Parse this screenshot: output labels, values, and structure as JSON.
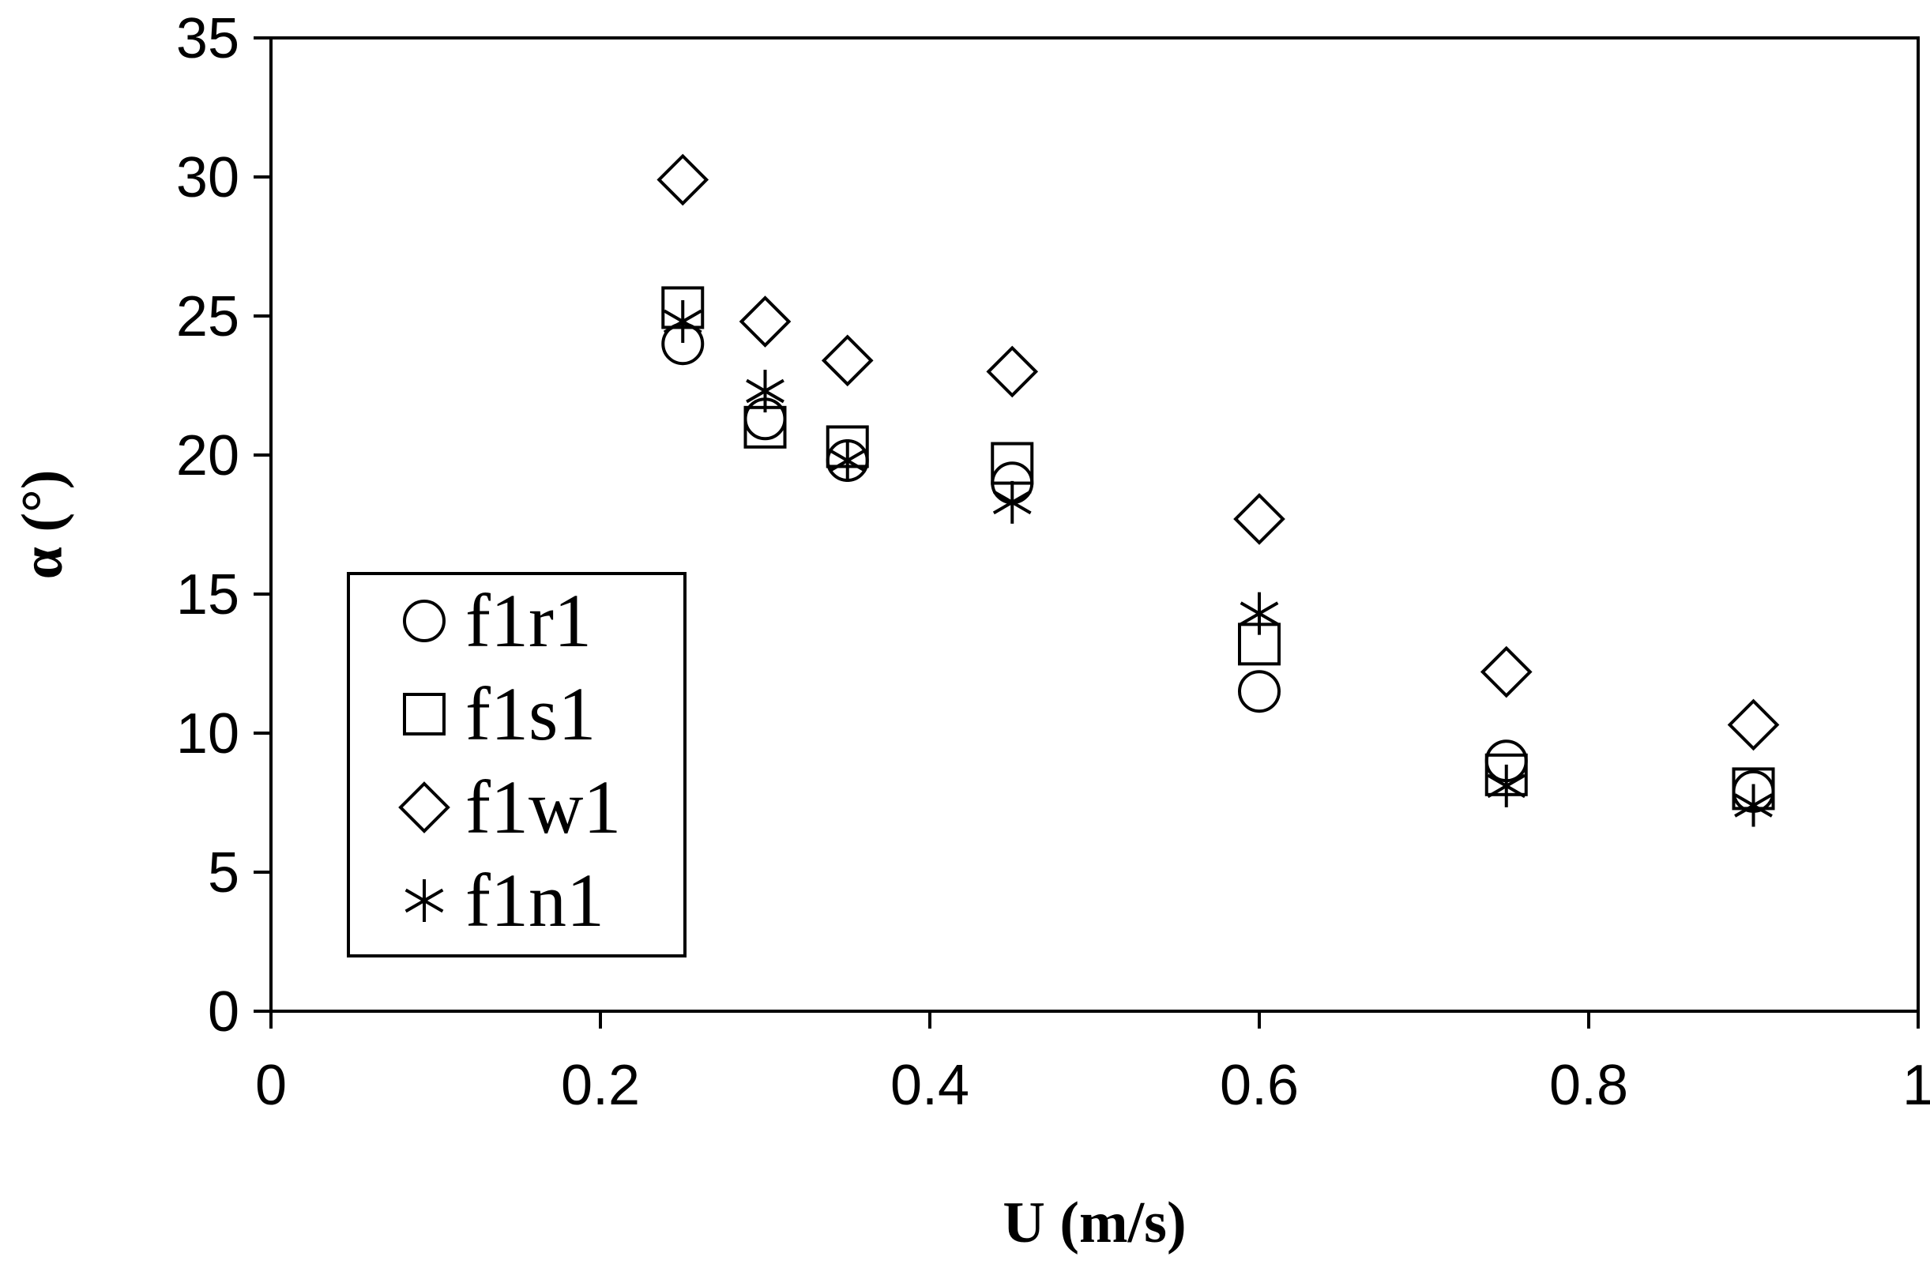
{
  "chart_data": {
    "type": "scatter",
    "title": "",
    "xlabel": "U (m/s)",
    "ylabel": "α (°)",
    "xlim": [
      0,
      1
    ],
    "ylim": [
      0,
      35
    ],
    "x_ticks": [
      "0",
      "0.2",
      "0.4",
      "0.6",
      "0.8",
      "1"
    ],
    "y_ticks": [
      "0",
      "5",
      "10",
      "15",
      "20",
      "25",
      "30",
      "35"
    ],
    "grid": false,
    "legend_position": "lower-left",
    "series": [
      {
        "name": "f1r1",
        "marker": "circle",
        "x": [
          0.25,
          0.3,
          0.35,
          0.45,
          0.6,
          0.75,
          0.9
        ],
        "y": [
          24.0,
          21.3,
          19.8,
          19.0,
          11.5,
          9.0,
          7.9
        ]
      },
      {
        "name": "f1s1",
        "marker": "square",
        "x": [
          0.25,
          0.3,
          0.35,
          0.45,
          0.6,
          0.75,
          0.9
        ],
        "y": [
          25.3,
          21.0,
          20.3,
          19.7,
          13.2,
          8.5,
          8.0
        ]
      },
      {
        "name": "f1w1",
        "marker": "diamond",
        "x": [
          0.25,
          0.3,
          0.35,
          0.45,
          0.6,
          0.75,
          0.9
        ],
        "y": [
          29.9,
          24.8,
          23.4,
          23.0,
          17.7,
          12.2,
          10.3
        ]
      },
      {
        "name": "f1n1",
        "marker": "asterisk",
        "x": [
          0.25,
          0.3,
          0.35,
          0.45,
          0.6,
          0.75,
          0.9
        ],
        "y": [
          24.8,
          22.3,
          19.8,
          18.3,
          14.3,
          8.1,
          7.4
        ]
      }
    ]
  }
}
